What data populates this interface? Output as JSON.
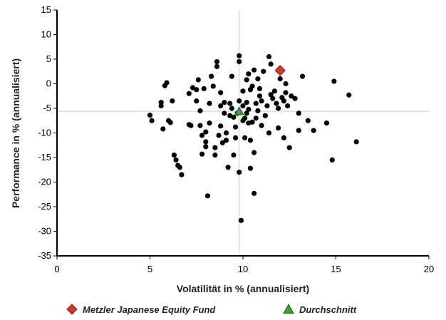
{
  "chart_data": {
    "type": "scatter",
    "xlabel": "Volatilität in % (annualisiert)",
    "ylabel": "Performance in % (annualisiert)",
    "xlim": [
      0,
      20
    ],
    "ylim": [
      -35,
      15
    ],
    "x_ticks": [
      0,
      5,
      10,
      15,
      20
    ],
    "y_ticks": [
      15,
      10,
      5,
      0,
      -5,
      -10,
      -15,
      -20,
      -25,
      -30,
      -35
    ],
    "grid": false,
    "legend_position": "bottom",
    "reference_lines": {
      "x": 9.8,
      "y": -5.6
    },
    "colors": {
      "points": "#000000",
      "fund": "#cc3b2e",
      "average": "#3b9e3b",
      "reference_line": "#cccccc"
    },
    "series": [
      {
        "name": "",
        "marker": "circle",
        "points": [
          [
            5.0,
            -6.4
          ],
          [
            5.1,
            -7.5
          ],
          [
            5.6,
            -3.8
          ],
          [
            5.6,
            -4.5
          ],
          [
            5.7,
            -9.2
          ],
          [
            5.8,
            -0.4
          ],
          [
            5.9,
            0.2
          ],
          [
            6.0,
            -7.5
          ],
          [
            6.1,
            -7.9
          ],
          [
            6.3,
            -14.5
          ],
          [
            6.4,
            -15.5
          ],
          [
            6.5,
            -16.6
          ],
          [
            6.6,
            -17.0
          ],
          [
            6.7,
            -18.5
          ],
          [
            6.2,
            -3.5
          ],
          [
            7.1,
            -8.3
          ],
          [
            7.1,
            -2.0
          ],
          [
            7.2,
            -8.5
          ],
          [
            7.3,
            -0.8
          ],
          [
            7.5,
            -1.2
          ],
          [
            7.5,
            -3.5
          ],
          [
            7.6,
            0.8
          ],
          [
            7.7,
            -5.5
          ],
          [
            7.7,
            -8.5
          ],
          [
            7.8,
            -10.5
          ],
          [
            7.8,
            -14.3
          ],
          [
            7.9,
            -1.0
          ],
          [
            8.0,
            -11.8
          ],
          [
            8.0,
            -12.8
          ],
          [
            8.0,
            -9.8
          ],
          [
            8.1,
            -22.8
          ],
          [
            8.2,
            -8.0
          ],
          [
            8.2,
            -4.0
          ],
          [
            8.3,
            1.5
          ],
          [
            8.4,
            -0.5
          ],
          [
            8.5,
            -14.5
          ],
          [
            8.5,
            -13.0
          ],
          [
            8.6,
            3.5
          ],
          [
            8.6,
            4.5
          ],
          [
            8.7,
            -10.5
          ],
          [
            8.8,
            -4.5
          ],
          [
            8.8,
            -1.8
          ],
          [
            8.9,
            -12.0
          ],
          [
            9.0,
            -6.0
          ],
          [
            9.0,
            -3.8
          ],
          [
            9.1,
            -11.5
          ],
          [
            9.2,
            -17.0
          ],
          [
            9.3,
            -6.5
          ],
          [
            9.3,
            -4.0
          ],
          [
            9.4,
            1.5
          ],
          [
            9.5,
            -6.8
          ],
          [
            9.5,
            -14.5
          ],
          [
            9.6,
            -11.0
          ],
          [
            9.6,
            -8.8
          ],
          [
            9.7,
            -6.0
          ],
          [
            9.8,
            -3.5
          ],
          [
            9.8,
            4.5
          ],
          [
            9.8,
            5.7
          ],
          [
            9.8,
            -18.0
          ],
          [
            9.9,
            -27.8
          ],
          [
            10.0,
            -7.5
          ],
          [
            10.0,
            -4.5
          ],
          [
            10.0,
            -1.5
          ],
          [
            10.1,
            -11.0
          ],
          [
            10.1,
            -7.0
          ],
          [
            10.2,
            -3.8
          ],
          [
            10.2,
            -6.0
          ],
          [
            10.3,
            2.0
          ],
          [
            10.3,
            -8.0
          ],
          [
            10.3,
            -5.2
          ],
          [
            10.4,
            -17.2
          ],
          [
            10.4,
            -11.5
          ],
          [
            10.5,
            -7.8
          ],
          [
            10.5,
            -0.5
          ],
          [
            10.6,
            -22.3
          ],
          [
            10.6,
            -14.0
          ],
          [
            10.6,
            2.8
          ],
          [
            10.7,
            -4.0
          ],
          [
            10.7,
            -7.0
          ],
          [
            10.8,
            1.0
          ],
          [
            10.8,
            -5.5
          ],
          [
            10.9,
            -2.5
          ],
          [
            11.0,
            -8.5
          ],
          [
            11.0,
            -3.5
          ],
          [
            11.1,
            2.5
          ],
          [
            11.2,
            -6.5
          ],
          [
            11.3,
            -4.5
          ],
          [
            11.4,
            -10.0
          ],
          [
            11.4,
            5.5
          ],
          [
            11.5,
            4.0
          ],
          [
            11.6,
            -3.0
          ],
          [
            11.7,
            -1.5
          ],
          [
            11.8,
            -4.0
          ],
          [
            11.9,
            -5.0
          ],
          [
            12.0,
            1.0
          ],
          [
            12.1,
            -2.8
          ],
          [
            12.2,
            -3.5
          ],
          [
            12.3,
            -1.8
          ],
          [
            12.4,
            -4.5
          ],
          [
            12.5,
            -13.0
          ],
          [
            12.6,
            -2.5
          ],
          [
            12.8,
            -3.0
          ],
          [
            13.0,
            -6.0
          ],
          [
            13.0,
            -9.5
          ],
          [
            13.2,
            1.5
          ],
          [
            13.5,
            -7.5
          ],
          [
            13.8,
            -9.5
          ],
          [
            14.5,
            -8.0
          ],
          [
            14.8,
            -15.5
          ],
          [
            14.9,
            0.5
          ],
          [
            15.7,
            -2.3
          ],
          [
            16.1,
            -11.8
          ],
          [
            12.2,
            -11.0
          ],
          [
            11.9,
            -9.0
          ],
          [
            10.4,
            -1.2
          ],
          [
            10.9,
            -1.0
          ],
          [
            9.4,
            -5.0
          ],
          [
            8.8,
            -8.6
          ],
          [
            12.3,
            0.0
          ],
          [
            11.5,
            -2.2
          ],
          [
            10.2,
            0.8
          ],
          [
            9.1,
            -10.0
          ]
        ]
      },
      {
        "name": "Metzler Japanese Equity Fund",
        "marker": "diamond",
        "points": [
          [
            12.0,
            2.7
          ]
        ]
      },
      {
        "name": "Durchschnitt",
        "marker": "triangle",
        "points": [
          [
            9.8,
            -5.6
          ]
        ]
      }
    ]
  }
}
